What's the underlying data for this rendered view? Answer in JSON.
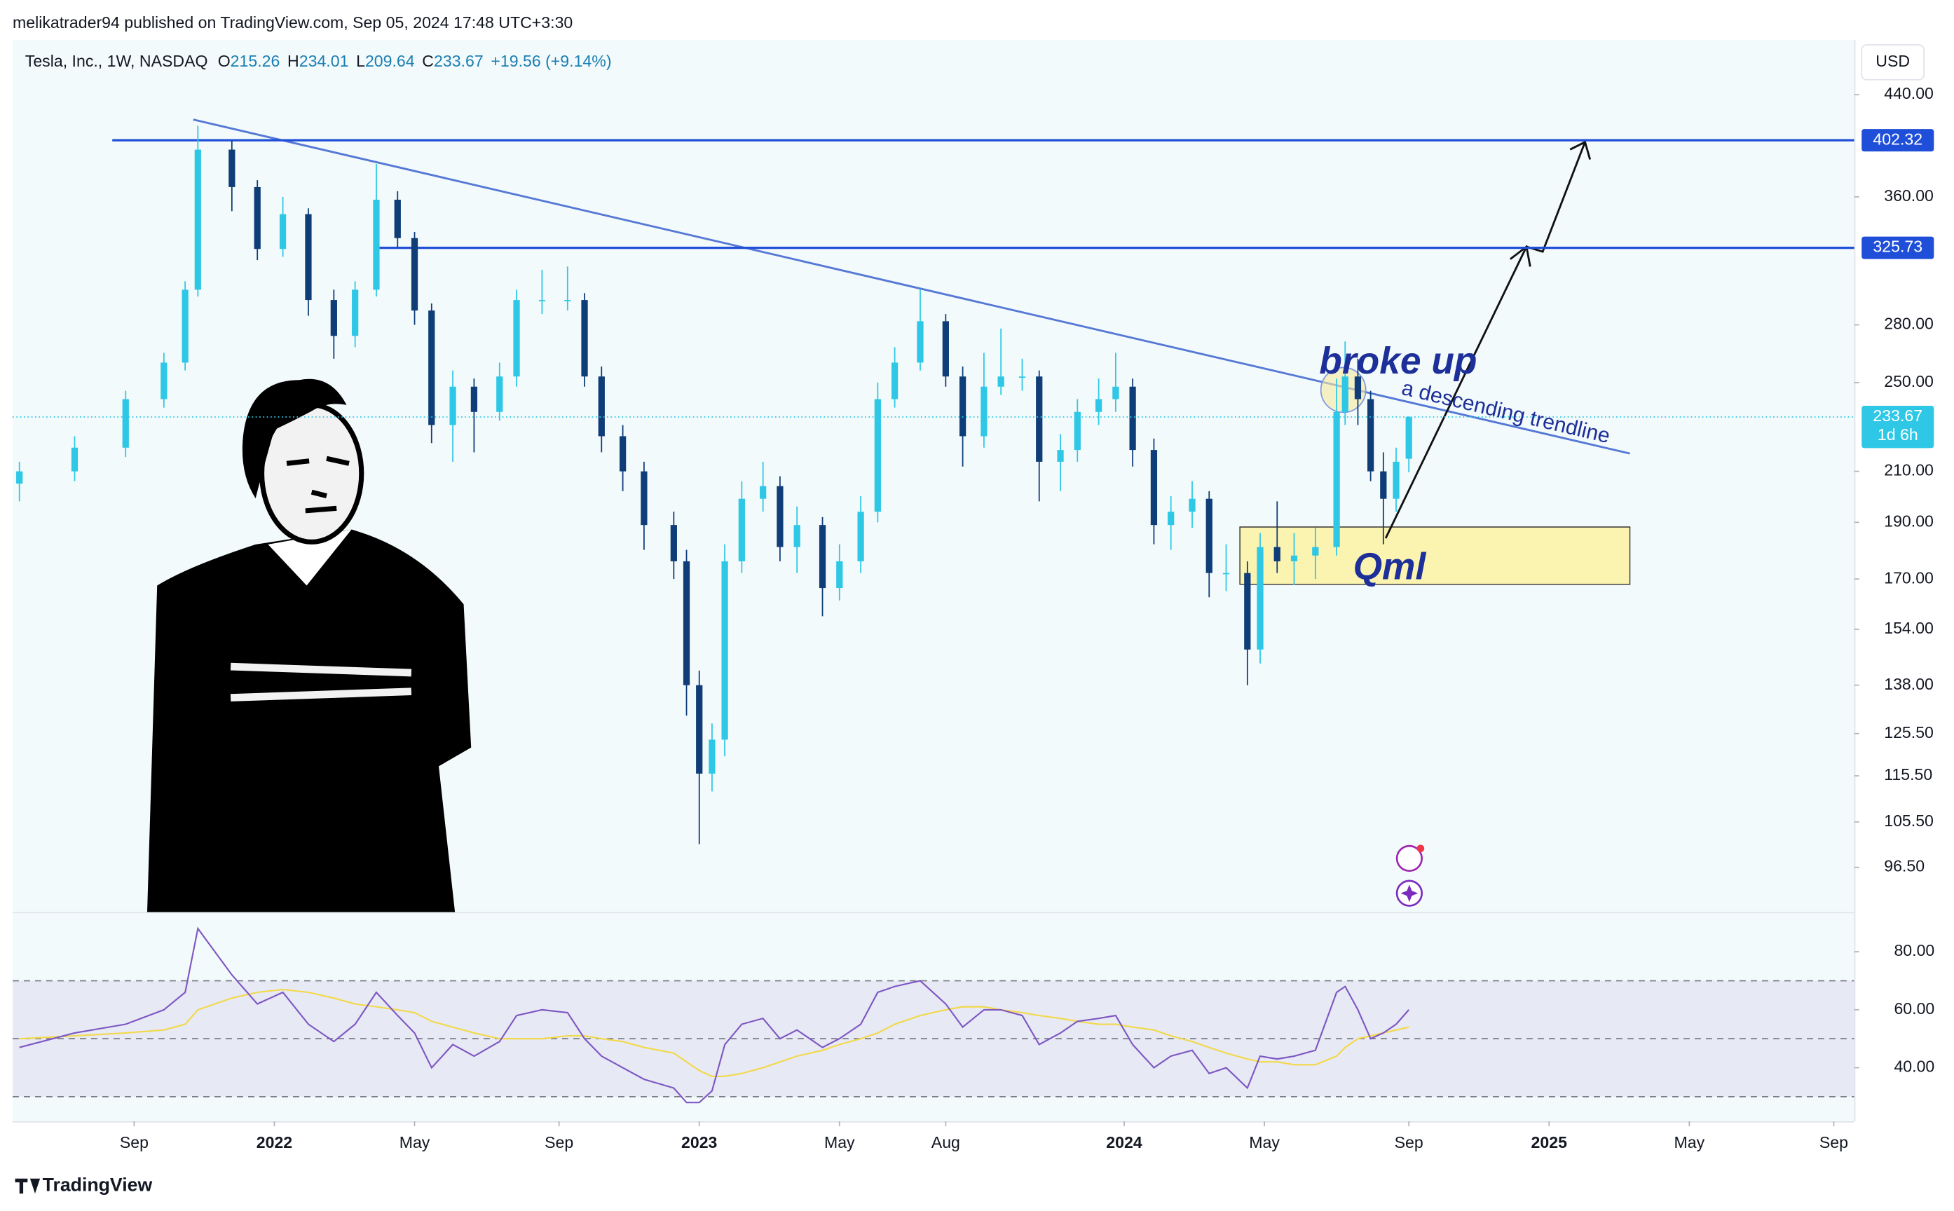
{
  "header": {
    "publisher": "melikatrader94 published on TradingView.com, Sep 05, 2024 17:48 UTC+3:30",
    "symbol": "Tesla, Inc., 1W, NASDAQ",
    "ohlc": [
      {
        "label": "O",
        "value": 215.26
      },
      {
        "label": "H",
        "value": 234.01
      },
      {
        "label": "L",
        "value": 209.64
      },
      {
        "label": "C",
        "value": 233.67
      }
    ],
    "change": "+19.56 (+9.14%)",
    "currency": "USD"
  },
  "chart_data": [
    {
      "type": "candlestick",
      "log_scale": true,
      "grid": false,
      "up_color": "#2ec8e6",
      "down_color": "#0f3d78",
      "x": [
        2021.4,
        2021.53,
        2021.65,
        2021.74,
        2021.79,
        2021.82,
        2021.9,
        2021.96,
        2022.02,
        2022.08,
        2022.14,
        2022.19,
        2022.24,
        2022.29,
        2022.33,
        2022.37,
        2022.42,
        2022.47,
        2022.53,
        2022.57,
        2022.63,
        2022.69,
        2022.73,
        2022.77,
        2022.82,
        2022.87,
        2022.94,
        2022.97,
        2023.0,
        2023.03,
        2023.06,
        2023.1,
        2023.15,
        2023.19,
        2023.23,
        2023.29,
        2023.33,
        2023.38,
        2023.42,
        2023.46,
        2023.52,
        2023.58,
        2023.62,
        2023.67,
        2023.71,
        2023.76,
        2023.8,
        2023.85,
        2023.89,
        2023.94,
        2023.98,
        2024.02,
        2024.07,
        2024.11,
        2024.16,
        2024.2,
        2024.24,
        2024.29,
        2024.32,
        2024.36,
        2024.4,
        2024.45,
        2024.5,
        2024.52,
        2024.55,
        2024.58,
        2024.61,
        2024.64,
        2024.67
      ],
      "open": [
        205,
        210,
        220,
        242,
        260,
        300,
        395,
        367,
        325,
        348,
        294,
        274,
        300,
        358,
        332,
        288,
        230,
        248,
        236,
        253,
        294,
        294,
        294,
        253,
        225,
        210,
        189,
        176,
        138,
        116,
        124,
        176,
        199,
        204,
        181,
        189,
        167,
        176,
        194,
        242,
        260,
        282,
        253,
        225,
        248,
        253,
        253,
        214,
        219,
        236,
        242,
        248,
        219,
        189,
        194,
        199,
        172,
        172,
        148,
        181,
        176,
        178,
        181,
        236,
        253,
        242,
        210,
        199,
        215.26
      ],
      "high": [
        214,
        225,
        246,
        265,
        305,
        414,
        402,
        372,
        360,
        352,
        300,
        305,
        384,
        364,
        336,
        292,
        256,
        252,
        260,
        300,
        312,
        314,
        298,
        258,
        230,
        214,
        194,
        180,
        142,
        128,
        182,
        206,
        214,
        208,
        196,
        192,
        182,
        200,
        250,
        268,
        300,
        286,
        258,
        265,
        278,
        262,
        256,
        226,
        242,
        252,
        265,
        252,
        224,
        200,
        206,
        202,
        182,
        176,
        186,
        198,
        186,
        188,
        252,
        271,
        262,
        246,
        218,
        220,
        234.01
      ],
      "low": [
        198,
        206,
        216,
        238,
        256,
        296,
        350,
        318,
        320,
        285,
        262,
        268,
        296,
        326,
        280,
        222,
        214,
        218,
        232,
        248,
        286,
        288,
        248,
        218,
        202,
        180,
        170,
        130,
        101,
        112,
        120,
        172,
        194,
        176,
        172,
        158,
        163,
        172,
        190,
        238,
        256,
        248,
        212,
        220,
        244,
        246,
        198,
        202,
        214,
        230,
        236,
        212,
        182,
        180,
        188,
        164,
        166,
        138,
        144,
        172,
        168,
        170,
        178,
        230,
        230,
        206,
        182,
        194,
        209.64
      ],
      "close": [
        210,
        220,
        242,
        260,
        300,
        395,
        367,
        325,
        348,
        294,
        274,
        300,
        358,
        332,
        288,
        230,
        248,
        236,
        253,
        294,
        294,
        294,
        253,
        225,
        210,
        189,
        176,
        138,
        116,
        124,
        176,
        199,
        204,
        181,
        189,
        167,
        176,
        194,
        242,
        260,
        282,
        253,
        225,
        248,
        253,
        253,
        214,
        219,
        236,
        242,
        248,
        219,
        189,
        194,
        199,
        172,
        172,
        148,
        181,
        176,
        178,
        181,
        236,
        253,
        242,
        210,
        199,
        214,
        233.67
      ],
      "xlim": [
        2021.384,
        2025.718
      ],
      "ylim": [
        88.4,
        490
      ],
      "yticks": [
        {
          "value": 440,
          "label": "440.00"
        },
        {
          "value": 360,
          "label": "360.00"
        },
        {
          "value": 280,
          "label": "280.00"
        },
        {
          "value": 250,
          "label": "250.00"
        },
        {
          "value": 210,
          "label": "210.00"
        },
        {
          "value": 190,
          "label": "190.00"
        },
        {
          "value": 170,
          "label": "170.00"
        },
        {
          "value": 154,
          "label": "154.00"
        },
        {
          "value": 138,
          "label": "138.00"
        },
        {
          "value": 125.5,
          "label": "125.50"
        },
        {
          "value": 115.5,
          "label": "115.50"
        },
        {
          "value": 105.5,
          "label": "105.50"
        },
        {
          "value": 96.5,
          "label": "96.50"
        }
      ],
      "xticks": [
        {
          "value": 2021.67,
          "label": "Sep"
        },
        2022,
        {
          "value": 2022.33,
          "label": "May"
        },
        {
          "value": 2022.67,
          "label": "Sep"
        },
        2023,
        {
          "value": 2023.33,
          "label": "May"
        },
        {
          "value": 2023.58,
          "label": "Aug"
        },
        2024,
        {
          "value": 2024.33,
          "label": "May"
        },
        {
          "value": 2024.67,
          "label": "Sep"
        },
        2025,
        {
          "value": 2025.33,
          "label": "May"
        },
        {
          "value": 2025.67,
          "label": "Sep"
        }
      ],
      "levels": [
        {
          "value": 402.32,
          "color": "#1f4fd8"
        },
        {
          "value": 325.73,
          "color": "#1f4fd8"
        }
      ],
      "countdown": "1d 6h",
      "annotations": {
        "broke_up": "broke up",
        "trendline": "a descending trendline",
        "qml": "Qml"
      }
    },
    {
      "type": "line",
      "ylim": [
        21.5,
        93.3
      ],
      "yticks": [
        {
          "value": 80,
          "label": "80.00"
        },
        {
          "value": 60,
          "label": "60.00"
        },
        {
          "value": 40,
          "label": "40.00"
        }
      ],
      "bands": [
        30,
        50,
        70
      ],
      "series": [
        {
          "color": "#7e57c2",
          "values": [
            47,
            52,
            55,
            60,
            66,
            88,
            72,
            62,
            66,
            55,
            49,
            55,
            66,
            58,
            52,
            40,
            48,
            44,
            49,
            58,
            60,
            59,
            50,
            44,
            40,
            36,
            33,
            28,
            28,
            32,
            48,
            55,
            57,
            50,
            53,
            47,
            50,
            55,
            66,
            68,
            70,
            62,
            54,
            60,
            60,
            58,
            48,
            52,
            56,
            57,
            58,
            48,
            40,
            44,
            46,
            38,
            40,
            33,
            44,
            43,
            44,
            46,
            66,
            68,
            60,
            50,
            52,
            55,
            60
          ]
        },
        {
          "color": "#f2d94a",
          "values": [
            50,
            51,
            52,
            53,
            55,
            60,
            64,
            66,
            67,
            66,
            64,
            62,
            61,
            60,
            59,
            56,
            54,
            52,
            50,
            50,
            50,
            51,
            51,
            50,
            49,
            47,
            45,
            42,
            39,
            37,
            37,
            38,
            40,
            42,
            44,
            46,
            48,
            50,
            52,
            55,
            58,
            60,
            61,
            61,
            60,
            59,
            58,
            57,
            56,
            55,
            55,
            54,
            53,
            51,
            49,
            47,
            45,
            43,
            42,
            42,
            41,
            41,
            44,
            47,
            50,
            51,
            52,
            53,
            54
          ]
        }
      ]
    }
  ],
  "footer": {
    "brand": "TradingView"
  }
}
